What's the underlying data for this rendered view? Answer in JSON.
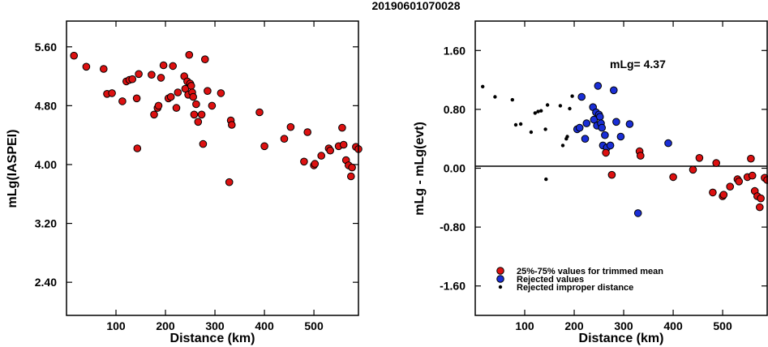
{
  "title": "20190601070028",
  "colors": {
    "red": "#dd1111",
    "blue": "#1a2ed6",
    "black": "#000000"
  },
  "chart_data": [
    {
      "type": "scatter",
      "xlabel": "Distance (km)",
      "ylabel": "mLg(IASPEI)",
      "xlim": [
        0,
        590
      ],
      "ylim": [
        1.95,
        5.95
      ],
      "xticks": [
        100,
        200,
        300,
        400,
        500
      ],
      "yticks": [
        2.4,
        3.2,
        4.0,
        4.8,
        5.6
      ],
      "ytick_labels": [
        "2.40",
        "3.20",
        "4.00",
        "4.80",
        "5.60"
      ],
      "series": [
        {
          "style": "red",
          "points": [
            [
              15,
              5.48
            ],
            [
              40,
              5.33
            ],
            [
              75,
              5.3
            ],
            [
              82,
              4.96
            ],
            [
              92,
              4.97
            ],
            [
              113,
              4.86
            ],
            [
              121,
              5.13
            ],
            [
              127,
              5.15
            ],
            [
              133,
              5.16
            ],
            [
              142,
              4.9
            ],
            [
              146,
              5.23
            ],
            [
              143,
              4.22
            ],
            [
              172,
              5.22
            ],
            [
              177,
              4.68
            ],
            [
              184,
              4.77
            ],
            [
              186,
              4.8
            ],
            [
              191,
              5.18
            ],
            [
              196,
              5.35
            ],
            [
              206,
              4.9
            ],
            [
              211,
              4.92
            ],
            [
              215,
              5.34
            ],
            [
              222,
              4.77
            ],
            [
              225,
              4.98
            ],
            [
              238,
              5.2
            ],
            [
              240,
              5.03
            ],
            [
              244,
              5.13
            ],
            [
              248,
              5.49
            ],
            [
              246,
              4.95
            ],
            [
              250,
              5.1
            ],
            [
              252,
              5.07
            ],
            [
              254,
              4.98
            ],
            [
              256,
              4.92
            ],
            [
              258,
              4.68
            ],
            [
              262,
              4.82
            ],
            [
              266,
              4.58
            ],
            [
              273,
              4.68
            ],
            [
              276,
              4.28
            ],
            [
              280,
              5.43
            ],
            [
              285,
              5.0
            ],
            [
              294,
              4.8
            ],
            [
              312,
              4.97
            ],
            [
              329,
              3.76
            ],
            [
              332,
              4.6
            ],
            [
              334,
              4.54
            ],
            [
              390,
              4.71
            ],
            [
              400,
              4.25
            ],
            [
              440,
              4.35
            ],
            [
              453,
              4.51
            ],
            [
              480,
              4.04
            ],
            [
              487,
              4.44
            ],
            [
              500,
              3.99
            ],
            [
              502,
              4.01
            ],
            [
              515,
              4.12
            ],
            [
              530,
              4.22
            ],
            [
              533,
              4.19
            ],
            [
              550,
              4.25
            ],
            [
              557,
              4.5
            ],
            [
              560,
              4.27
            ],
            [
              565,
              4.06
            ],
            [
              570,
              3.99
            ],
            [
              575,
              3.84
            ],
            [
              577,
              3.96
            ],
            [
              585,
              4.24
            ],
            [
              590,
              4.21
            ]
          ]
        }
      ]
    },
    {
      "type": "scatter",
      "xlabel": "Distance (km)",
      "ylabel": "mLg - mLg(evt)",
      "xlim": [
        0,
        590
      ],
      "ylim": [
        -2.0,
        2.0
      ],
      "xticks": [
        100,
        200,
        300,
        400,
        500
      ],
      "yticks": [
        -1.6,
        -0.8,
        0.0,
        0.8,
        1.6
      ],
      "ytick_labels": [
        "-1.60",
        "-0.80",
        "0.00",
        "0.80",
        "1.60"
      ],
      "zero_line": true,
      "annotation": "mLg= 4.37",
      "legend": {
        "placement": "bottom-left",
        "entries": [
          {
            "style": "red",
            "label": "25%-75% values for trimmed mean"
          },
          {
            "style": "blue",
            "label": "Rejected values"
          },
          {
            "style": "black",
            "label": "Rejected improper distance"
          }
        ]
      },
      "series": [
        {
          "style": "black",
          "points": [
            [
              15,
              1.11
            ],
            [
              40,
              0.97
            ],
            [
              75,
              0.93
            ],
            [
              82,
              0.59
            ],
            [
              92,
              0.6
            ],
            [
              113,
              0.49
            ],
            [
              121,
              0.75
            ],
            [
              127,
              0.77
            ],
            [
              133,
              0.78
            ],
            [
              142,
              0.53
            ],
            [
              146,
              0.86
            ],
            [
              143,
              -0.15
            ],
            [
              172,
              0.85
            ],
            [
              177,
              0.31
            ],
            [
              184,
              0.4
            ],
            [
              186,
              0.43
            ],
            [
              191,
              0.81
            ],
            [
              196,
              0.98
            ],
            [
              206,
              0.53
            ],
            [
              211,
              0.55
            ],
            [
              215,
              0.97
            ],
            [
              222,
              0.4
            ]
          ]
        },
        {
          "style": "blue",
          "points": [
            [
              206,
              0.53
            ],
            [
              211,
              0.55
            ],
            [
              215,
              0.97
            ],
            [
              222,
              0.4
            ],
            [
              225,
              0.61
            ],
            [
              238,
              0.83
            ],
            [
              240,
              0.66
            ],
            [
              244,
              0.76
            ],
            [
              248,
              1.12
            ],
            [
              246,
              0.58
            ],
            [
              250,
              0.73
            ],
            [
              252,
              0.7
            ],
            [
              254,
              0.61
            ],
            [
              256,
              0.55
            ],
            [
              258,
              0.31
            ],
            [
              262,
              0.45
            ],
            [
              266,
              0.28
            ],
            [
              273,
              0.31
            ],
            [
              280,
              1.06
            ],
            [
              285,
              0.63
            ],
            [
              294,
              0.43
            ],
            [
              312,
              0.6
            ],
            [
              329,
              -0.61
            ],
            [
              390,
              0.34
            ]
          ]
        },
        {
          "style": "red",
          "points": [
            [
              264,
              0.21
            ],
            [
              276,
              -0.09
            ],
            [
              332,
              0.23
            ],
            [
              334,
              0.17
            ],
            [
              400,
              -0.12
            ],
            [
              440,
              -0.02
            ],
            [
              453,
              0.14
            ],
            [
              480,
              -0.33
            ],
            [
              487,
              0.07
            ],
            [
              500,
              -0.38
            ],
            [
              502,
              -0.36
            ],
            [
              515,
              -0.25
            ],
            [
              530,
              -0.15
            ],
            [
              533,
              -0.18
            ],
            [
              550,
              -0.12
            ],
            [
              557,
              0.13
            ],
            [
              560,
              -0.1
            ],
            [
              565,
              -0.31
            ],
            [
              570,
              -0.38
            ],
            [
              575,
              -0.53
            ],
            [
              577,
              -0.41
            ],
            [
              585,
              -0.13
            ],
            [
              590,
              -0.16
            ]
          ]
        }
      ]
    }
  ]
}
